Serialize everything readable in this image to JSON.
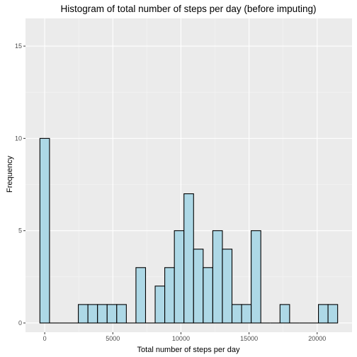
{
  "chart_data": {
    "type": "bar",
    "title": "Histogram of total number of steps per day (before imputing)",
    "xlabel": "Total number of steps per day",
    "ylabel": "Frequency",
    "binwidth": 705,
    "bins": [
      {
        "center": 0,
        "count": 10
      },
      {
        "center": 705,
        "count": 0
      },
      {
        "center": 1410,
        "count": 0
      },
      {
        "center": 2115,
        "count": 0
      },
      {
        "center": 2820,
        "count": 1
      },
      {
        "center": 3525,
        "count": 1
      },
      {
        "center": 4230,
        "count": 1
      },
      {
        "center": 4935,
        "count": 1
      },
      {
        "center": 5640,
        "count": 1
      },
      {
        "center": 6345,
        "count": 0
      },
      {
        "center": 7050,
        "count": 3
      },
      {
        "center": 7755,
        "count": 0
      },
      {
        "center": 8460,
        "count": 2
      },
      {
        "center": 9165,
        "count": 3
      },
      {
        "center": 9870,
        "count": 5
      },
      {
        "center": 10575,
        "count": 7
      },
      {
        "center": 11280,
        "count": 4
      },
      {
        "center": 11985,
        "count": 3
      },
      {
        "center": 12690,
        "count": 5
      },
      {
        "center": 13395,
        "count": 4
      },
      {
        "center": 14100,
        "count": 1
      },
      {
        "center": 14805,
        "count": 1
      },
      {
        "center": 15510,
        "count": 5
      },
      {
        "center": 16215,
        "count": 0
      },
      {
        "center": 16920,
        "count": 0
      },
      {
        "center": 17625,
        "count": 1
      },
      {
        "center": 18330,
        "count": 0
      },
      {
        "center": 19035,
        "count": 0
      },
      {
        "center": 19740,
        "count": 0
      },
      {
        "center": 20445,
        "count": 1
      },
      {
        "center": 21150,
        "count": 1
      }
    ],
    "xlim": [
      -1410,
      22560
    ],
    "ylim": [
      -0.5,
      16.5
    ],
    "x_ticks": [
      0,
      5000,
      10000,
      15000,
      20000
    ],
    "x_tick_labels": [
      "0",
      "5000",
      "10000",
      "15000",
      "20000"
    ],
    "y_ticks": [
      0,
      5,
      10,
      15
    ],
    "y_tick_labels": [
      "0",
      "5",
      "10",
      "15"
    ],
    "grid": true,
    "legend": "none",
    "colors": {
      "bar_fill": "#add8e6",
      "bar_stroke": "#000000",
      "panel_background": "#ebebeb",
      "grid_major": "#ffffff",
      "grid_minor": "#f5f5f5",
      "tick_text": "#4d4d4d",
      "tick_mark": "#333333"
    }
  }
}
